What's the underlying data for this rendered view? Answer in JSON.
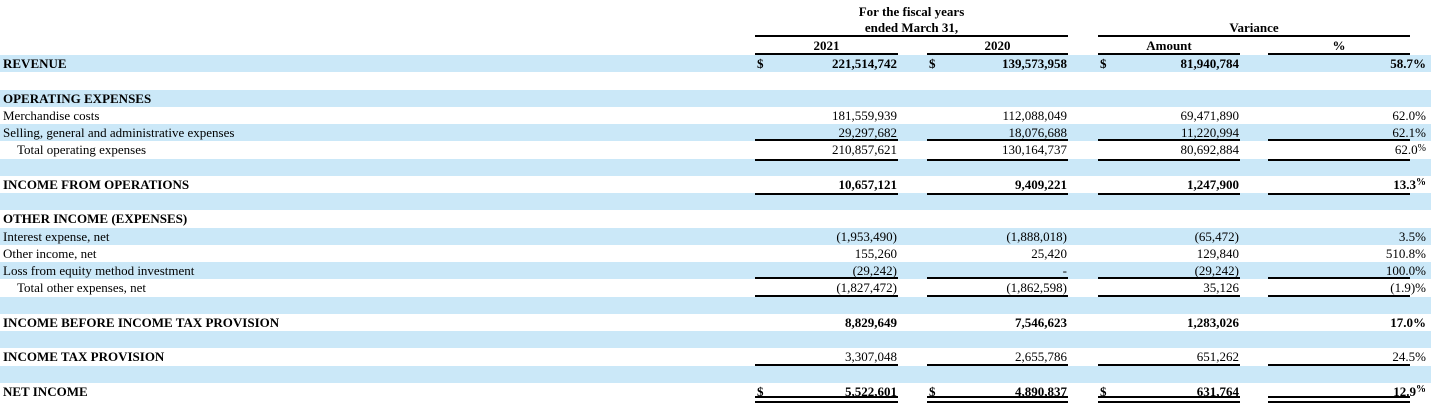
{
  "title": "Comparative statement of income with variance",
  "colors": {
    "band": "#cbe8f8",
    "rule": "#000000",
    "text": "#000000",
    "background": "#ffffff"
  },
  "header": {
    "period_group": {
      "line1": "For the fiscal years",
      "line2": "ended March 31,"
    },
    "variance_group": "Variance",
    "col_2021": "2021",
    "col_2020": "2020",
    "col_amount": "Amount",
    "col_percent": "%"
  },
  "rows": [
    {
      "type": "data",
      "label": "REVENUE",
      "label_bold": true,
      "nums_bold": true,
      "dollar": true,
      "band": true,
      "c2021": "221,514,742",
      "c2020": "139,573,958",
      "amount": "81,940,784",
      "pct": "58.7%",
      "pct_sup": false,
      "rule": "none"
    },
    {
      "type": "blank",
      "band": false
    },
    {
      "type": "section",
      "label": "OPERATING EXPENSES",
      "label_bold": true,
      "band": true
    },
    {
      "type": "data",
      "label": "Merchandise costs",
      "band": false,
      "c2021": "181,559,939",
      "c2020": "112,088,049",
      "amount": "69,471,890",
      "pct": "62.0%",
      "pct_sup": false,
      "rule": "none"
    },
    {
      "type": "data",
      "label": "Selling, general and administrative expenses",
      "band": true,
      "c2021": "29,297,682",
      "c2020": "18,076,688",
      "amount": "11,220,994",
      "pct": "62.1%",
      "pct_sup": false,
      "rule": "single"
    },
    {
      "type": "data",
      "label": "Total operating expenses",
      "indent": true,
      "band": false,
      "c2021": "210,857,621",
      "c2020": "130,164,737",
      "amount": "80,692,884",
      "pct": "62.0%",
      "pct_sup": true,
      "rule": "single"
    },
    {
      "type": "blank",
      "band": true
    },
    {
      "type": "data",
      "label": "INCOME FROM OPERATIONS",
      "label_bold": true,
      "nums_bold": true,
      "band": false,
      "c2021": "10,657,121",
      "c2020": "9,409,221",
      "amount": "1,247,900",
      "pct": "13.3%",
      "pct_sup": true,
      "rule": "single"
    },
    {
      "type": "blank",
      "band": true
    },
    {
      "type": "section",
      "label": "OTHER INCOME (EXPENSES)",
      "label_bold": true,
      "band": false
    },
    {
      "type": "data",
      "label": "Interest expense, net",
      "band": true,
      "c2021": "(1,953,490)",
      "c2020": "(1,888,018)",
      "amount": "(65,472)",
      "pct": "3.5%",
      "pct_sup": false,
      "rule": "none"
    },
    {
      "type": "data",
      "label": "Other income, net",
      "band": false,
      "c2021": "155,260",
      "c2020": "25,420",
      "amount": "129,840",
      "pct": "510.8%",
      "pct_sup": false,
      "rule": "none"
    },
    {
      "type": "data",
      "label": "Loss from equity method investment",
      "band": true,
      "c2021": "(29,242)",
      "c2020": "-",
      "amount": "(29,242)",
      "pct": "100.0%",
      "pct_sup": false,
      "rule": "single"
    },
    {
      "type": "data",
      "label": "Total other expenses, net",
      "indent": true,
      "band": false,
      "c2021": "(1,827,472)",
      "c2020": "(1,862,598)",
      "amount": "35,126",
      "pct": "(1.9)%",
      "pct_sup": false,
      "rule": "single"
    },
    {
      "type": "blank",
      "band": true
    },
    {
      "type": "data",
      "label": "INCOME BEFORE INCOME TAX PROVISION",
      "label_bold": true,
      "nums_bold": true,
      "band": false,
      "c2021": "8,829,649",
      "c2020": "7,546,623",
      "amount": "1,283,026",
      "pct": "17.0%",
      "pct_sup": false,
      "rule": "none"
    },
    {
      "type": "blank",
      "band": true
    },
    {
      "type": "data",
      "label": "INCOME TAX PROVISION",
      "label_bold": true,
      "nums_bold": false,
      "band": false,
      "c2021": "3,307,048",
      "c2020": "2,655,786",
      "amount": "651,262",
      "pct": "24.5%",
      "pct_sup": false,
      "rule": "single"
    },
    {
      "type": "blank",
      "band": true
    },
    {
      "type": "data",
      "label": "NET INCOME",
      "label_bold": true,
      "nums_bold": true,
      "dollar": true,
      "band": false,
      "c2021": "5,522,601",
      "c2020": "4,890,837",
      "amount": "631,764",
      "pct": "12.9%",
      "pct_sup": true,
      "rule": "double"
    }
  ]
}
